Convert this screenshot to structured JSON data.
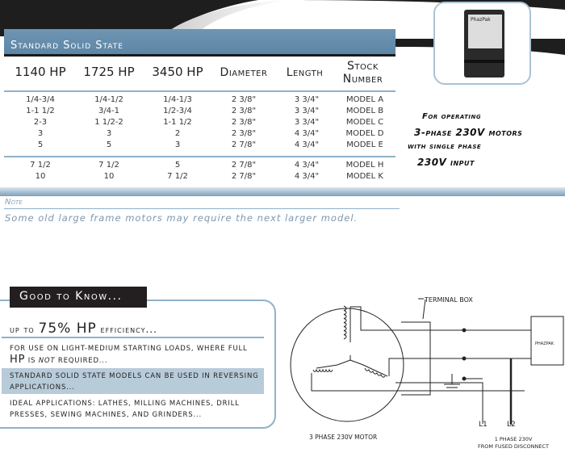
{
  "table": {
    "title": "Standard Solid State",
    "headers": [
      "1140 HP",
      "1725 HP",
      "3450 HP",
      "Diameter",
      "Length",
      "Stock Number"
    ],
    "rows": [
      [
        "1/4-3/4",
        "1/4-1/2",
        "1/4-1/3",
        "2 3/8\"",
        "3 3/4\"",
        "MODEL A"
      ],
      [
        "1-1 1/2",
        "3/4-1",
        "1/2-3/4",
        "2 3/8\"",
        "3 3/4\"",
        "MODEL B"
      ],
      [
        "2-3",
        "1 1/2-2",
        "1-1 1/2",
        "2 3/8\"",
        "3 3/4\"",
        "MODEL C"
      ],
      [
        "3",
        "3",
        "2",
        "2 3/8\"",
        "4 3/4\"",
        "MODEL D"
      ],
      [
        "5",
        "5",
        "3",
        "2 7/8\"",
        "4 3/4\"",
        "MODEL E"
      ],
      [
        "7 1/2",
        "7 1/2",
        "5",
        "2 7/8\"",
        "4 3/4\"",
        "MODEL H"
      ],
      [
        "10",
        "10",
        "7 1/2",
        "2 7/8\"",
        "4 3/4\"",
        "MODEL K"
      ]
    ]
  },
  "note": {
    "label": "Note",
    "text": "Some old large frame motors may require the next larger model."
  },
  "product": {
    "brand": "PhazPak"
  },
  "side_text": [
    "For operating",
    "3-phase 230V motors",
    "with single phase",
    "230V input"
  ],
  "good_to_know": {
    "label": "Good to Know...",
    "heading_pre": "up to ",
    "heading_big": "75% HP",
    "heading_post": " efficiency...",
    "p1a": "For use on light-medium starting loads, where full ",
    "p1hp": "HP",
    "p1b": " is ",
    "p1not": "not",
    "p1c": " required...",
    "p2": "Standard solid state models can be used in reversing applications...",
    "p3": "Ideal applications: lathes, milling machines, drill presses, sewing machines, and grinders..."
  },
  "diagram": {
    "terminal_box": "TERMINAL BOX",
    "phazpak": "PHAZPAK",
    "l1": "L1",
    "l2": "L2",
    "motor_label": "3 PHASE 230V MOTOR",
    "input_label_1": "1 PHASE 230V",
    "input_label_2": "FROM FUSED DISCONNECT"
  },
  "colors": {
    "accent_blue": "#6f95b2",
    "dark": "#231f20",
    "light_blue": "#b8cbd9"
  }
}
